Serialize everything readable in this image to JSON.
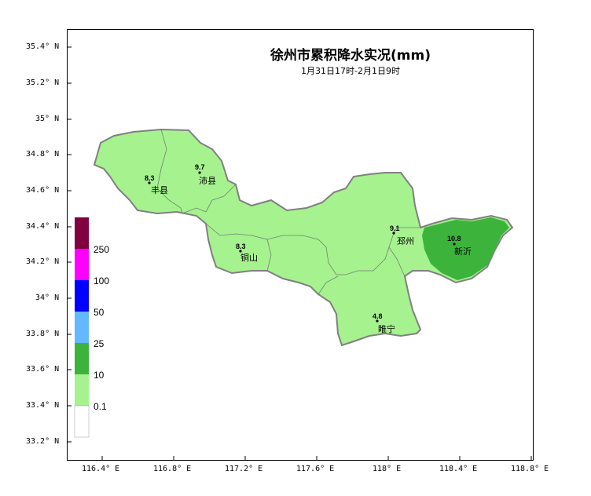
{
  "map": {
    "title": "徐州市累积降水实况(mm)",
    "subtitle": "1月31日17时-2月1日9时",
    "lat_labels": [
      "35.4° N",
      "35.2° N",
      "35° N",
      "34.8° N",
      "34.6° N",
      "34.4° N",
      "34.2° N",
      "34° N",
      "33.8° N",
      "33.6° N",
      "33.4° N",
      "33.2° N"
    ],
    "lon_labels": [
      "116.4° E",
      "116.8° E",
      "117.2° E",
      "117.6° E",
      "118° E",
      "118.4° E",
      "118.8° E"
    ],
    "stations": [
      {
        "name": "丰县",
        "value": "8.3"
      },
      {
        "name": "沛县",
        "value": "9.7"
      },
      {
        "name": "铜山",
        "value": "8.3"
      },
      {
        "name": "邳州",
        "value": "9.1"
      },
      {
        "name": "新沂",
        "value": "10.8"
      },
      {
        "name": "睢宁",
        "value": "4.8"
      }
    ]
  },
  "legend": {
    "labels": [
      "250",
      "100",
      "50",
      "25",
      "10",
      "0.1"
    ],
    "colors": [
      "#800040",
      "#ff00ff",
      "#0000ff",
      "#63b8ff",
      "#3cb43c",
      "#a6f28f",
      "#ffffff"
    ]
  },
  "colors": {
    "light_green": "#a6f28f",
    "dark_green": "#3cb43c",
    "border": "#808080"
  }
}
